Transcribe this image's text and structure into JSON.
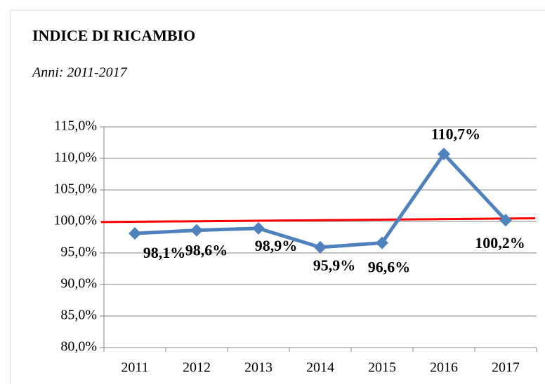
{
  "chart_data": {
    "type": "line",
    "title": "INDICE DI RICAMBIO",
    "subtitle": "Anni: 2011-2017",
    "categories": [
      "2011",
      "2012",
      "2013",
      "2014",
      "2015",
      "2016",
      "2017"
    ],
    "series": [
      {
        "color": "#4f81bd",
        "values": [
          98.1,
          98.6,
          98.9,
          95.9,
          96.6,
          110.7,
          100.2
        ],
        "value_labels": [
          "98,1%",
          "98,6%",
          "98,9%",
          "95,9%",
          "96,6%",
          "110,7%",
          "100,2%"
        ]
      }
    ],
    "reference_line": {
      "color": "#ff0000",
      "y_start": 99.9,
      "y_end": 100.5
    },
    "ylim": [
      80,
      115
    ],
    "yticks": [
      {
        "value": 80,
        "label": "80,0%"
      },
      {
        "value": 85,
        "label": "85,0%"
      },
      {
        "value": 90,
        "label": "90,0%"
      },
      {
        "value": 95,
        "label": "95,0%"
      },
      {
        "value": 100,
        "label": "100,0%"
      },
      {
        "value": 105,
        "label": "105,0%"
      },
      {
        "value": 110,
        "label": "110,0%"
      },
      {
        "value": 115,
        "label": "115,0%"
      }
    ],
    "grid": true
  }
}
